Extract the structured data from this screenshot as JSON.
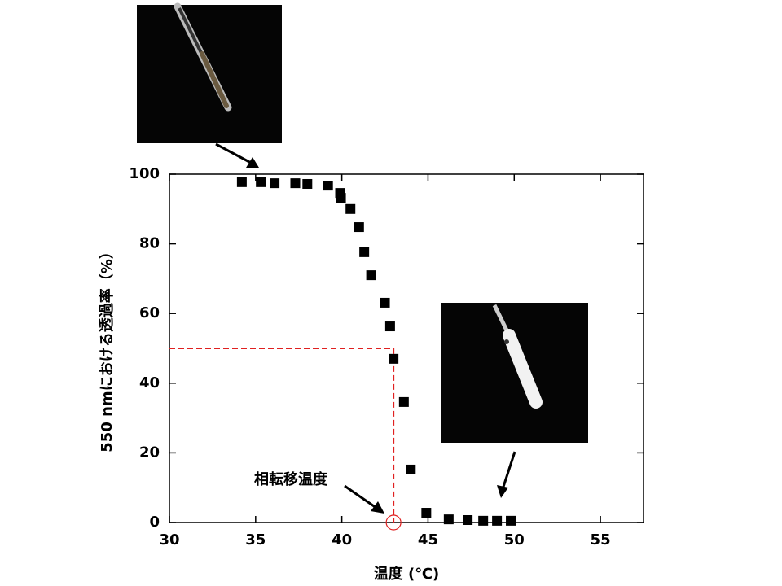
{
  "chart_data": {
    "type": "scatter",
    "x_label": "温度 (℃)",
    "y_label": "550 nmにおける透過率（%）",
    "annotation": "相転移温度",
    "color": "#000000",
    "reference": {
      "x": 43,
      "y": 50,
      "color": "#e02020"
    },
    "x": [
      34.2,
      35.3,
      36.1,
      37.3,
      38.0,
      39.2,
      39.9,
      39.95,
      40.5,
      41.0,
      41.3,
      41.7,
      42.5,
      42.8,
      43.0,
      43.6,
      44.0,
      44.9,
      46.2,
      47.3,
      48.2,
      49.0,
      49.8
    ],
    "values": [
      97.7,
      97.7,
      97.4,
      97.4,
      97.2,
      96.7,
      94.6,
      93.2,
      90.0,
      84.8,
      77.6,
      71.0,
      63.1,
      56.3,
      47.0,
      34.6,
      15.2,
      2.8,
      0.9,
      0.7,
      0.5,
      0.5,
      0.5
    ],
    "xlim": [
      30,
      57.5
    ],
    "xticks": [
      30,
      35,
      40,
      45,
      50,
      55
    ],
    "ylim": [
      0,
      100
    ],
    "yticks": [
      0,
      20,
      40,
      60,
      80,
      100
    ]
  }
}
